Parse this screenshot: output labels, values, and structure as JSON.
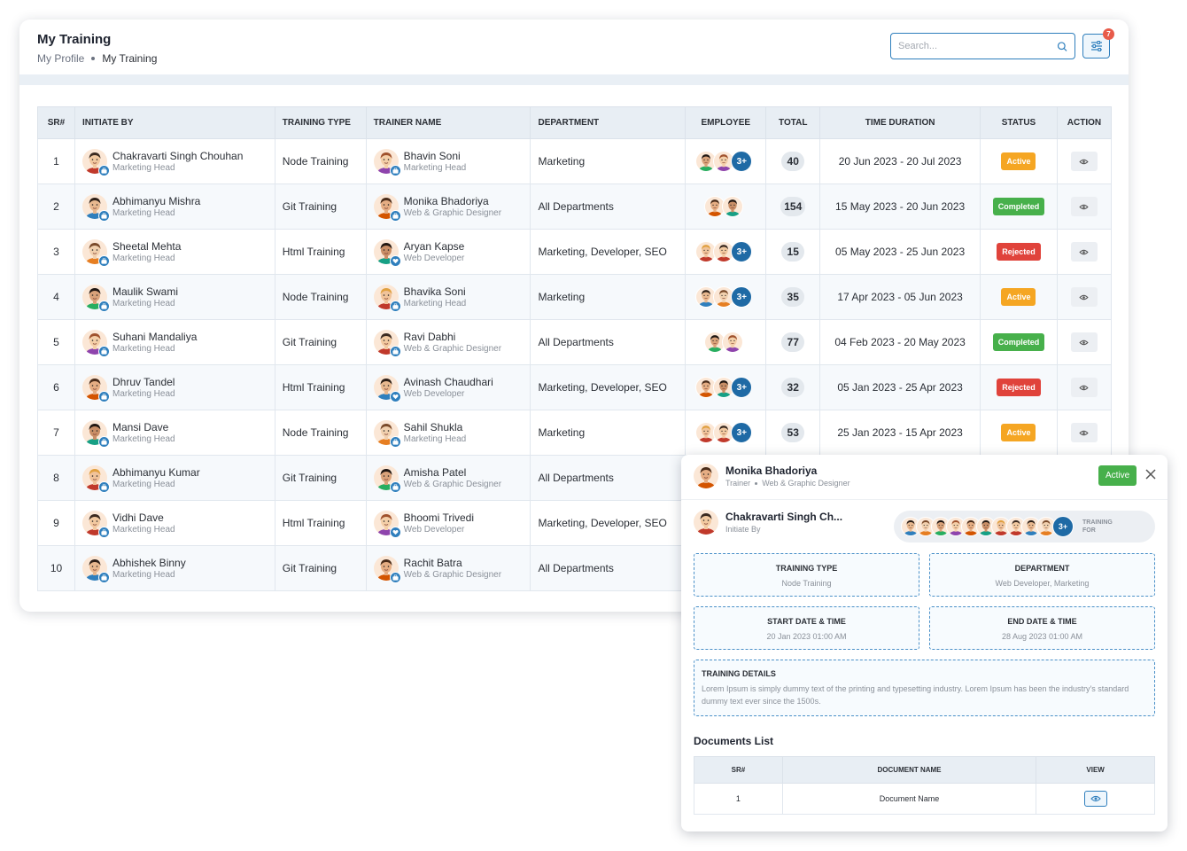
{
  "header": {
    "title": "My Training",
    "breadcrumb": [
      "My Profile",
      "My Training"
    ]
  },
  "search": {
    "placeholder": "Search...",
    "value": ""
  },
  "filter": {
    "badge_count": "7"
  },
  "table": {
    "columns": [
      "SR#",
      "INITIATE BY",
      "TRAINING TYPE",
      "TRAINER NAME",
      "DEPARTMENT",
      "EMPLOYEE",
      "TOTAL",
      "TIME DURATION",
      "STATUS",
      "ACTION"
    ],
    "rows": [
      {
        "sr": "1",
        "initiator": {
          "name": "Chakravarti Singh Chouhan",
          "role": "Marketing Head"
        },
        "type": "Node Training",
        "trainer": {
          "name": "Bhavin Soni",
          "role": "Marketing Head"
        },
        "department": "Marketing",
        "employees": 2,
        "more": "3+",
        "total": "40",
        "duration": "20 Jun 2023 - 20 Jul 2023",
        "status": "Active"
      },
      {
        "sr": "2",
        "initiator": {
          "name": "Abhimanyu Mishra",
          "role": "Marketing Head"
        },
        "type": "Git Training",
        "trainer": {
          "name": "Monika Bhadoriya",
          "role": "Web & Graphic Designer"
        },
        "department": "All Departments",
        "employees": 2,
        "more": "",
        "total": "154",
        "duration": "15 May 2023 - 20 Jun 2023",
        "status": "Completed"
      },
      {
        "sr": "3",
        "initiator": {
          "name": "Sheetal Mehta",
          "role": "Marketing Head"
        },
        "type": "Html Training",
        "trainer": {
          "name": "Aryan Kapse",
          "role": "Web Developer"
        },
        "department": "Marketing, Developer, SEO",
        "employees": 2,
        "more": "3+",
        "total": "15",
        "duration": "05 May 2023 - 25 Jun 2023",
        "status": "Rejected"
      },
      {
        "sr": "4",
        "initiator": {
          "name": "Maulik Swami",
          "role": "Marketing Head"
        },
        "type": "Node Training",
        "trainer": {
          "name": "Bhavika Soni",
          "role": "Marketing Head"
        },
        "department": "Marketing",
        "employees": 2,
        "more": "3+",
        "total": "35",
        "duration": "17 Apr 2023 - 05 Jun 2023",
        "status": "Active"
      },
      {
        "sr": "5",
        "initiator": {
          "name": "Suhani Mandaliya",
          "role": "Marketing Head"
        },
        "type": "Git Training",
        "trainer": {
          "name": "Ravi Dabhi",
          "role": "Web & Graphic Designer"
        },
        "department": "All Departments",
        "employees": 2,
        "more": "",
        "total": "77",
        "duration": "04 Feb 2023 - 20 May 2023",
        "status": "Completed"
      },
      {
        "sr": "6",
        "initiator": {
          "name": "Dhruv Tandel",
          "role": "Marketing Head"
        },
        "type": "Html Training",
        "trainer": {
          "name": "Avinash Chaudhari",
          "role": "Web Developer"
        },
        "department": "Marketing, Developer, SEO",
        "employees": 2,
        "more": "3+",
        "total": "32",
        "duration": "05 Jan 2023 - 25 Apr 2023",
        "status": "Rejected"
      },
      {
        "sr": "7",
        "initiator": {
          "name": "Mansi Dave",
          "role": "Marketing Head"
        },
        "type": "Node Training",
        "trainer": {
          "name": "Sahil Shukla",
          "role": "Marketing Head"
        },
        "department": "Marketing",
        "employees": 2,
        "more": "3+",
        "total": "53",
        "duration": "25 Jan 2023 - 15 Apr 2023",
        "status": "Active"
      },
      {
        "sr": "8",
        "initiator": {
          "name": "Abhimanyu Kumar",
          "role": "Marketing Head"
        },
        "type": "Git Training",
        "trainer": {
          "name": "Amisha Patel",
          "role": "Web & Graphic Designer"
        },
        "department": "All Departments",
        "employees": 0,
        "more": "",
        "total": "",
        "duration": "",
        "status": ""
      },
      {
        "sr": "9",
        "initiator": {
          "name": "Vidhi Dave",
          "role": "Marketing Head"
        },
        "type": "Html Training",
        "trainer": {
          "name": "Bhoomi Trivedi",
          "role": "Web Developer"
        },
        "department": "Marketing, Developer, SEO",
        "employees": 0,
        "more": "",
        "total": "",
        "duration": "",
        "status": ""
      },
      {
        "sr": "10",
        "initiator": {
          "name": "Abhishek Binny",
          "role": "Marketing Head"
        },
        "type": "Git Training",
        "trainer": {
          "name": "Rachit Batra",
          "role": "Web & Graphic Designer"
        },
        "department": "All Departments",
        "employees": 0,
        "more": "",
        "total": "",
        "duration": "",
        "status": ""
      }
    ]
  },
  "status_colors": {
    "Active": "#f5a623",
    "Completed": "#47b04b",
    "Rejected": "#e0433b"
  },
  "popup": {
    "trainer_name": "Monika Bhadoriya",
    "trainer_label": "Trainer",
    "trainer_role": "Web & Graphic Designer",
    "status": "Active",
    "initiator_name": "Chakravarti Singh Ch...",
    "initiator_label": "Initiate By",
    "training_for_count": "3+",
    "training_for_label_1": "TRAINING",
    "training_for_label_2": "FOR",
    "training_type_label": "TRAINING TYPE",
    "training_type": "Node Training",
    "department_label": "DEPARTMENT",
    "department": "Web Developer, Marketing",
    "start_label": "START DATE & TIME",
    "start": "20 Jan 2023 01:00 AM",
    "end_label": "END DATE & TIME",
    "end": "28 Aug 2023 01:00 AM",
    "details_label": "TRAINING DETAILS",
    "details": "Lorem Ipsum is simply dummy text of the printing and typesetting industry. Lorem Ipsum has been the industry's standard dummy text ever since the 1500s.",
    "docs_title": "Documents List",
    "docs_columns": [
      "SR#",
      "DOCUMENT NAME",
      "VIEW"
    ],
    "docs": [
      {
        "sr": "1",
        "name": "Document Name"
      }
    ]
  }
}
